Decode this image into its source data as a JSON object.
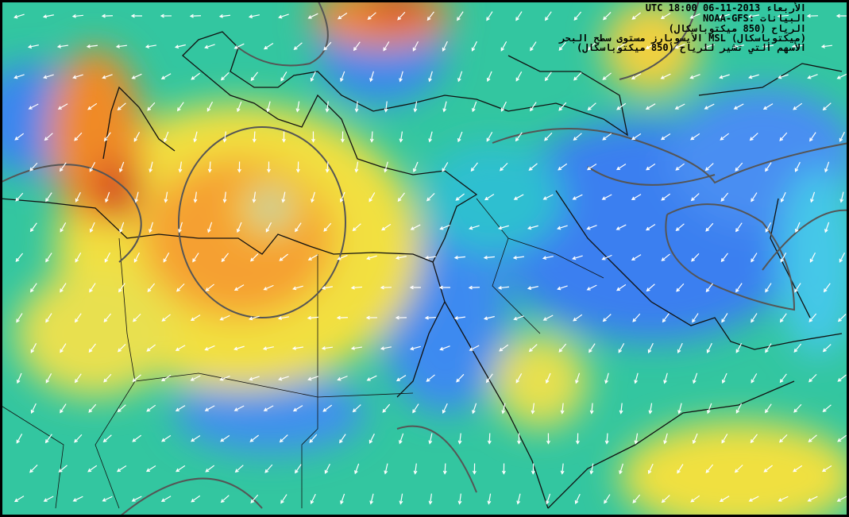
{
  "legend": {
    "lines": [
      "UTC 18:00 06-11-2013 الأربعاء",
      "NOAA-GFS: البيانات",
      "الرياح (850 ميكتوباسكال)",
      "الأيسوبارز مستوى سطح البحر MSL (ميكتوباسكال)",
      "الأسهم التي تشير للرياح (850 ميكتوباسكال)"
    ]
  }
}
